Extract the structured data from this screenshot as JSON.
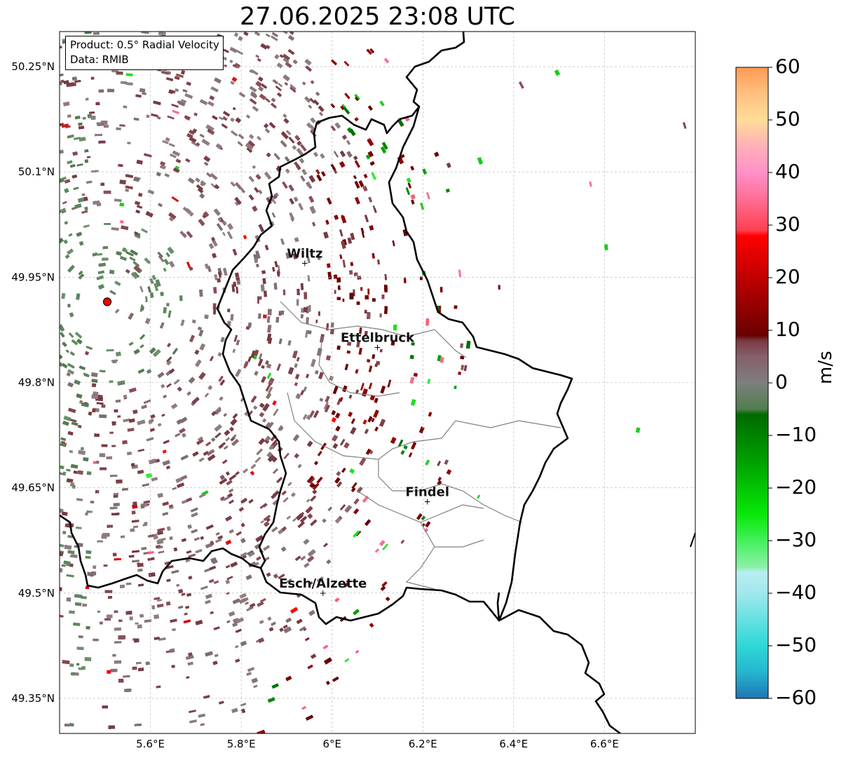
{
  "title": "27.06.2025 23:08 UTC",
  "info": {
    "product": "Product: 0.5° Radial Velocity",
    "data": "Data: RMIB"
  },
  "axes": {
    "lon_ticks": [
      "5.6°E",
      "5.8°E",
      "6°E",
      "6.2°E",
      "6.4°E",
      "6.6°E"
    ],
    "lat_ticks": [
      "50.25°N",
      "50.1°N",
      "49.95°N",
      "49.8°N",
      "49.65°N",
      "49.5°N",
      "49.35°N"
    ],
    "lon_values": [
      5.6,
      5.8,
      6.0,
      6.2,
      6.4,
      6.6
    ],
    "lat_values": [
      50.25,
      50.1,
      49.95,
      49.8,
      49.65,
      49.5,
      49.35
    ],
    "lon_range": [
      5.4,
      6.8
    ],
    "lat_range": [
      49.3,
      50.3
    ]
  },
  "radar": {
    "lon": 5.505,
    "lat": 49.915
  },
  "cities": [
    {
      "name": "Wiltz",
      "lon": 5.94,
      "lat": 49.97
    },
    {
      "name": "Ettelbruck",
      "lon": 6.1,
      "lat": 49.85
    },
    {
      "name": "Findel",
      "lon": 6.21,
      "lat": 49.63
    },
    {
      "name": "Esch/Alzette",
      "lon": 5.98,
      "lat": 49.5
    }
  ],
  "colorbar": {
    "label": "m/s",
    "ticks": [
      "60",
      "50",
      "40",
      "30",
      "20",
      "10",
      "0",
      "−10",
      "−20",
      "−30",
      "−40",
      "−50",
      "−60"
    ],
    "tick_values": [
      60,
      50,
      40,
      30,
      20,
      10,
      0,
      -10,
      -20,
      -30,
      -40,
      -50,
      -60
    ],
    "range": [
      -60,
      60
    ],
    "stops": [
      {
        "v": -60,
        "c": "#1f77b4"
      },
      {
        "v": -55,
        "c": "#26b5cf"
      },
      {
        "v": -50,
        "c": "#2ed8d8"
      },
      {
        "v": -40,
        "c": "#a0e8ec"
      },
      {
        "v": -36,
        "c": "#b8eef0"
      },
      {
        "v": -35,
        "c": "#8cf0a6"
      },
      {
        "v": -30,
        "c": "#44f05c"
      },
      {
        "v": -25,
        "c": "#08e808"
      },
      {
        "v": -15,
        "c": "#00a000"
      },
      {
        "v": -6,
        "c": "#006a00"
      },
      {
        "v": -5,
        "c": "#4f7e4f"
      },
      {
        "v": 0,
        "c": "#7e7e7e"
      },
      {
        "v": 5,
        "c": "#86606a"
      },
      {
        "v": 8,
        "c": "#7a3a42"
      },
      {
        "v": 9,
        "c": "#6a0000"
      },
      {
        "v": 20,
        "c": "#c00000"
      },
      {
        "v": 28,
        "c": "#ff0000"
      },
      {
        "v": 29,
        "c": "#ff4050"
      },
      {
        "v": 35,
        "c": "#ff6e94"
      },
      {
        "v": 40,
        "c": "#ff90c8"
      },
      {
        "v": 45,
        "c": "#ffb0b8"
      },
      {
        "v": 50,
        "c": "#ffdc98"
      },
      {
        "v": 55,
        "c": "#ffc080"
      },
      {
        "v": 60,
        "c": "#ff9a54"
      }
    ]
  },
  "colors": {
    "border": "#000000",
    "canton": "#808080",
    "radar_marker": "#ff0000",
    "grid": "#b0b0b0"
  }
}
